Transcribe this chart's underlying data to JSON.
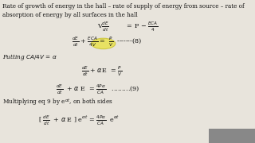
{
  "bg_color": "#e8e4dc",
  "text_color": "#111111",
  "line1": "Rate of growth of energy in the hall – rate of supply of energy from source – rate of",
  "line2": "absorption of energy by all surfaces in the hall",
  "fs_body": 5.2,
  "fs_eq": 5.8,
  "highlight_color": "#dddd00"
}
